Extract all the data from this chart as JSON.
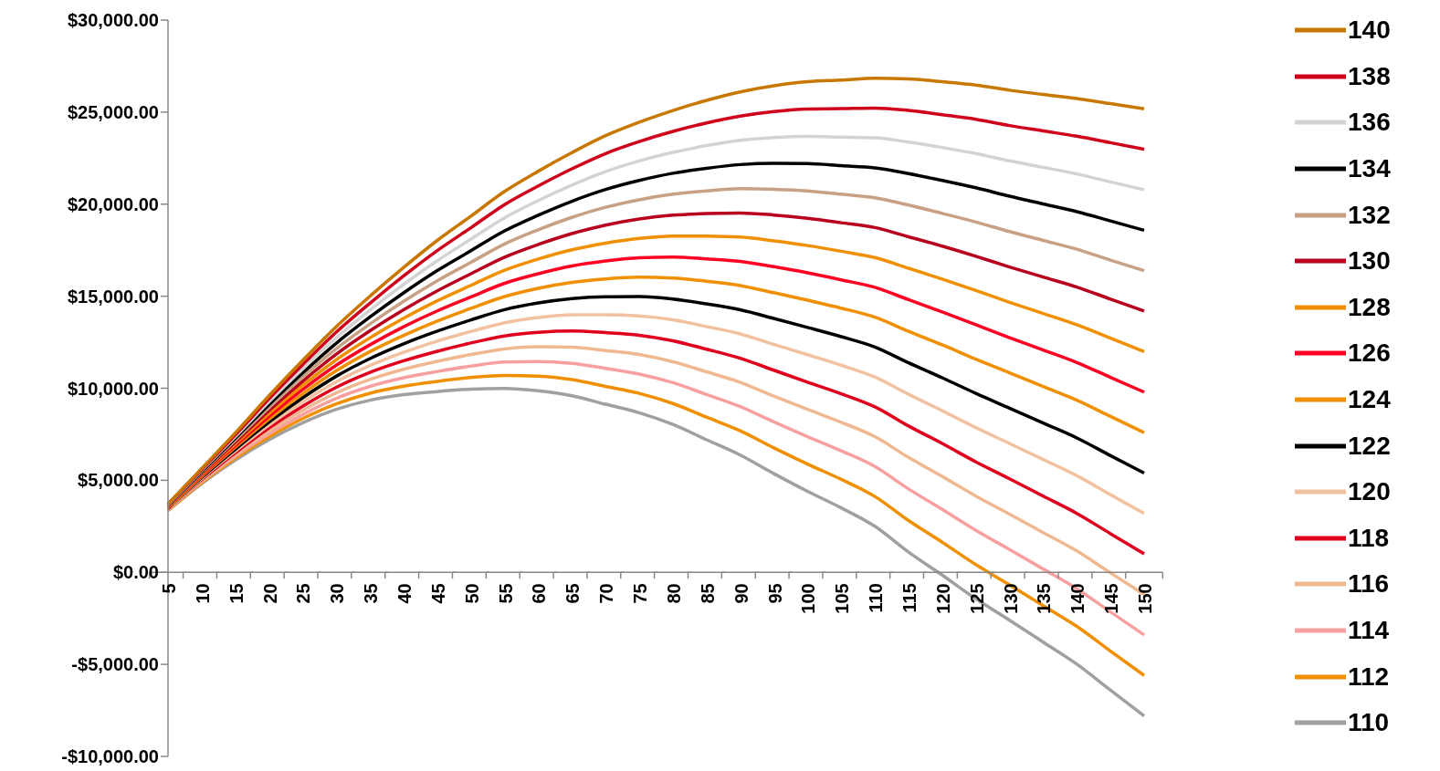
{
  "chart_data": {
    "type": "line",
    "categories": [
      "5",
      "10",
      "15",
      "20",
      "25",
      "30",
      "35",
      "40",
      "45",
      "50",
      "55",
      "60",
      "65",
      "70",
      "75",
      "80",
      "85",
      "90",
      "95",
      "100",
      "105",
      "110",
      "115",
      "120",
      "125",
      "130",
      "135",
      "140",
      "145",
      "150"
    ],
    "ylim": [
      -10000,
      30000
    ],
    "yticks": [
      {
        "value": -10000,
        "label": "-$10,000.00"
      },
      {
        "value": -5000,
        "label": "-$5,000.00"
      },
      {
        "value": 0,
        "label": "$0.00"
      },
      {
        "value": 5000,
        "label": "$5,000.00"
      },
      {
        "value": 10000,
        "label": "$10,000.00"
      },
      {
        "value": 15000,
        "label": "$15,000.00"
      },
      {
        "value": 20000,
        "label": "$20,000.00"
      },
      {
        "value": 25000,
        "label": "$25,000.00"
      },
      {
        "value": 30000,
        "label": "$30,000.00"
      }
    ],
    "grid": false,
    "legend": "right",
    "marker": "none",
    "line_style": "solid",
    "series": [
      {
        "name": "140",
        "color": "#c87800",
        "values": [
          3720,
          5640,
          7570,
          9590,
          11510,
          13350,
          15000,
          16560,
          18030,
          19350,
          20690,
          21790,
          22800,
          23720,
          24450,
          25090,
          25640,
          26100,
          26430,
          26650,
          26740,
          26840,
          26800,
          26650,
          26470,
          26190,
          25960,
          25740,
          25460,
          25180
        ]
      },
      {
        "name": "138",
        "color": "#d0021b",
        "values": [
          3700,
          5580,
          7470,
          9430,
          11280,
          13050,
          14620,
          16100,
          17480,
          18720,
          19980,
          20990,
          21920,
          22750,
          23400,
          23950,
          24410,
          24780,
          25030,
          25170,
          25190,
          25220,
          25090,
          24860,
          24610,
          24270,
          23980,
          23690,
          23340,
          22980
        ]
      },
      {
        "name": "136",
        "color": "#d3d3d3",
        "values": [
          3670,
          5530,
          7370,
          9270,
          11060,
          12750,
          14250,
          15640,
          16930,
          18100,
          19260,
          20200,
          21040,
          21770,
          22350,
          22810,
          23180,
          23470,
          23620,
          23680,
          23640,
          23600,
          23370,
          23080,
          22750,
          22350,
          22000,
          21640,
          21210,
          20780
        ]
      },
      {
        "name": "134",
        "color": "#000000",
        "values": [
          3650,
          5470,
          7280,
          9110,
          10830,
          12450,
          13870,
          15180,
          16390,
          17470,
          18550,
          19400,
          20160,
          20800,
          21290,
          21680,
          21950,
          22150,
          22220,
          22200,
          22090,
          21970,
          21660,
          21290,
          20890,
          20430,
          20010,
          19590,
          19090,
          18580
        ]
      },
      {
        "name": "132",
        "color": "#c8a084",
        "values": [
          3620,
          5420,
          7180,
          8950,
          10610,
          12150,
          13490,
          14720,
          15840,
          16840,
          17840,
          18610,
          19280,
          19830,
          20240,
          20540,
          20720,
          20840,
          20810,
          20720,
          20540,
          20350,
          19950,
          19500,
          19030,
          18510,
          18030,
          17550,
          16960,
          16390
        ]
      },
      {
        "name": "130",
        "color": "#b8001e",
        "values": [
          3600,
          5360,
          7080,
          8790,
          10380,
          11850,
          13120,
          14260,
          15290,
          16220,
          17120,
          17810,
          18400,
          18860,
          19190,
          19400,
          19490,
          19520,
          19410,
          19230,
          18990,
          18730,
          18230,
          17720,
          17170,
          16590,
          16040,
          15500,
          14840,
          14190
        ]
      },
      {
        "name": "128",
        "color": "#f09000",
        "values": [
          3570,
          5310,
          6980,
          8630,
          10150,
          11550,
          12740,
          13800,
          14750,
          15590,
          16410,
          17020,
          17520,
          17880,
          18140,
          18270,
          18260,
          18210,
          18000,
          17750,
          17440,
          17100,
          16520,
          15930,
          15310,
          14670,
          14060,
          13450,
          12720,
          11990
        ]
      },
      {
        "name": "126",
        "color": "#ff0022",
        "values": [
          3550,
          5250,
          6880,
          8470,
          9930,
          11250,
          12360,
          13340,
          14200,
          14960,
          15700,
          16220,
          16640,
          16910,
          17090,
          17130,
          17030,
          16890,
          16600,
          16270,
          15890,
          15480,
          14810,
          14140,
          13450,
          12750,
          12080,
          11400,
          10590,
          9790
        ]
      },
      {
        "name": "124",
        "color": "#f09000",
        "values": [
          3520,
          5200,
          6790,
          8320,
          9700,
          10950,
          11990,
          12870,
          13650,
          14340,
          14980,
          15430,
          15750,
          15940,
          16030,
          15990,
          15810,
          15580,
          15190,
          14780,
          14350,
          13860,
          13090,
          12360,
          11580,
          10840,
          10090,
          9350,
          8470,
          7590
        ]
      },
      {
        "name": "122",
        "color": "#000000",
        "values": [
          3500,
          5140,
          6690,
          8160,
          9480,
          10650,
          11610,
          12410,
          13100,
          13710,
          14270,
          14630,
          14870,
          14970,
          14980,
          14850,
          14580,
          14260,
          13790,
          13300,
          12800,
          12240,
          11380,
          10570,
          9720,
          8920,
          8110,
          7300,
          6340,
          5390
        ]
      },
      {
        "name": "120",
        "color": "#f2c2a0",
        "values": [
          3470,
          5090,
          6590,
          8000,
          9250,
          10350,
          11230,
          11950,
          12560,
          13080,
          13560,
          13840,
          13990,
          13990,
          13930,
          13720,
          13350,
          12950,
          12380,
          11820,
          11250,
          10610,
          9670,
          8780,
          7860,
          7000,
          6130,
          5250,
          4220,
          3200
        ]
      },
      {
        "name": "118",
        "color": "#e0001e",
        "values": [
          3450,
          5030,
          6490,
          7840,
          9020,
          10050,
          10860,
          11490,
          12010,
          12460,
          12840,
          13040,
          13110,
          13020,
          12880,
          12580,
          12120,
          11630,
          10980,
          10330,
          9700,
          8990,
          7950,
          7000,
          6000,
          5080,
          4140,
          3200,
          2100,
          1000
        ]
      },
      {
        "name": "116",
        "color": "#f0b890",
        "values": [
          3420,
          4980,
          6390,
          7680,
          8800,
          9750,
          10480,
          11030,
          11460,
          11830,
          12130,
          12250,
          12230,
          12050,
          11830,
          11440,
          10890,
          10320,
          9570,
          8850,
          8150,
          7370,
          6240,
          5210,
          4140,
          3160,
          2160,
          1160,
          -30,
          -1200
        ]
      },
      {
        "name": "114",
        "color": "#f8a0a0",
        "values": [
          3400,
          4920,
          6300,
          7520,
          8570,
          9450,
          10100,
          10570,
          10910,
          11200,
          11420,
          11450,
          11350,
          11080,
          10770,
          10300,
          9660,
          9000,
          8170,
          7370,
          6600,
          5750,
          4530,
          3420,
          2280,
          1240,
          180,
          -890,
          -2150,
          -3400
        ]
      },
      {
        "name": "112",
        "color": "#f09000",
        "values": [
          3370,
          4870,
          6200,
          7360,
          8350,
          9150,
          9730,
          10110,
          10370,
          10580,
          10700,
          10660,
          10470,
          10100,
          9720,
          9170,
          8430,
          7690,
          6760,
          5880,
          5050,
          4120,
          2810,
          1640,
          420,
          -680,
          -1810,
          -2940,
          -4280,
          -5600
        ]
      },
      {
        "name": "110",
        "color": "#a0a0a0",
        "values": [
          3350,
          4810,
          6100,
          7200,
          8120,
          8850,
          9350,
          9650,
          9820,
          9950,
          9990,
          9860,
          9590,
          9130,
          8670,
          8030,
          7200,
          6370,
          5360,
          4400,
          3500,
          2500,
          1100,
          -150,
          -1440,
          -2600,
          -3790,
          -4990,
          -6400,
          -7800
        ]
      }
    ]
  }
}
